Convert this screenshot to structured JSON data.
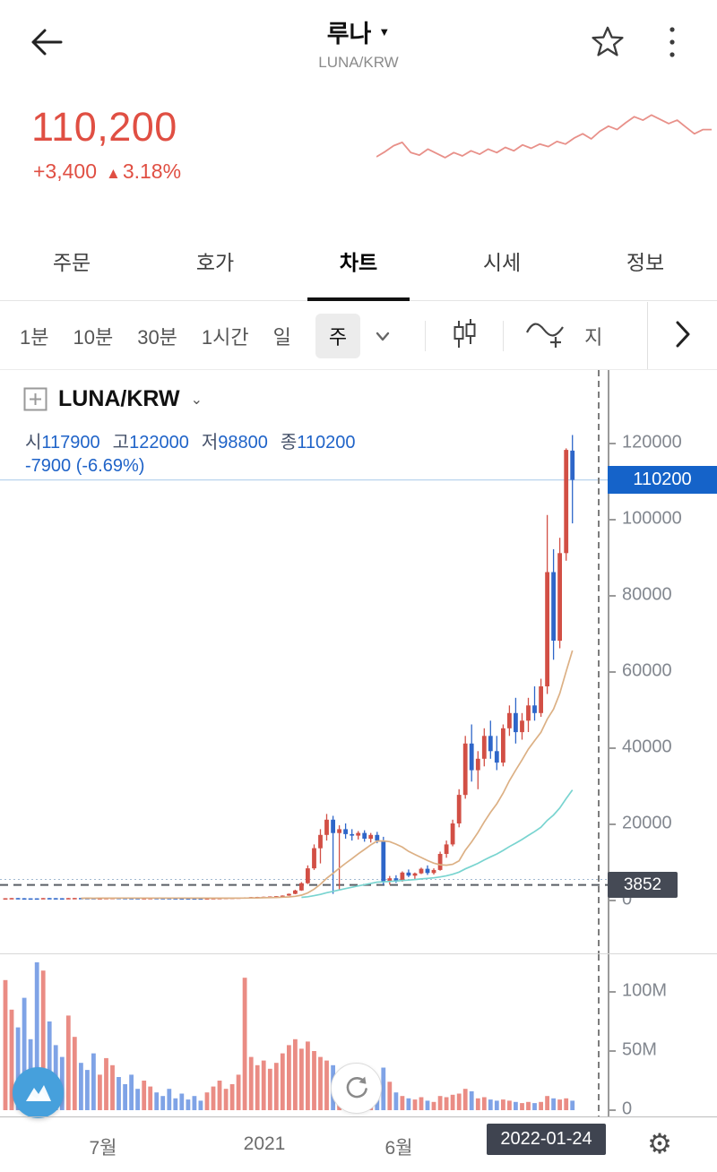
{
  "header": {
    "title": "루나",
    "subtitle": "LUNA/KRW"
  },
  "price": {
    "value": "110,200",
    "change": "+3,400",
    "direction": "▲",
    "change_pct": "3.18%"
  },
  "tabs": [
    "주문",
    "호가",
    "차트",
    "시세",
    "정보"
  ],
  "active_tab": "차트",
  "toolbar": {
    "timeframes": [
      "1분",
      "10분",
      "30분",
      "1시간",
      "일",
      "주"
    ],
    "active_timeframe": "주",
    "indicator_label": "지"
  },
  "chart": {
    "symbol": "LUNA/KRW",
    "labels": {
      "open": "시",
      "high": "고",
      "low": "저",
      "close": "종"
    },
    "ohlc": {
      "open": "117900",
      "high": "122000",
      "low": "98800",
      "close": "110200"
    },
    "change_line": "-7900 (-6.69%)",
    "current_price_label": "110200",
    "low_marker_label": "3852",
    "axis_ticks": [
      120000,
      100000,
      80000,
      60000,
      40000,
      20000,
      0
    ],
    "x_labels": [
      {
        "text": "7월",
        "x": 115
      },
      {
        "text": "2021",
        "x": 295
      },
      {
        "text": "6월",
        "x": 445
      }
    ],
    "date_label": "2022-01-24",
    "volume_ticks": [
      {
        "text": "100M",
        "m": 100
      },
      {
        "text": "50M",
        "m": 50
      },
      {
        "text": "0",
        "m": 0
      }
    ]
  },
  "colors": {
    "up": "#d24f45",
    "down": "#2e66c9",
    "vol_up": "#ea8c84",
    "vol_down": "#7fa3e6",
    "price_red": "#e04f43",
    "ohlc_blue": "#1f63c8",
    "tag_blue": "#1563c9",
    "tag_dark": "#454a55",
    "spark": "#e89089",
    "marker_line": "#b9d3ee",
    "dashed_line": "#5a5f66",
    "dotted_line": "#a3bbd2",
    "crosshair": "#7d7d7d"
  },
  "chart_data": {
    "type": "candlestick",
    "interval": "week",
    "title": "LUNA/KRW weekly candlestick with volume",
    "ylim": [
      0,
      138000
    ],
    "marker_price": 110200,
    "dashed_level": 3852,
    "dotted_level": 5300,
    "ma": [
      {
        "name": "ma-fast",
        "window": 13,
        "color": "#dcb084"
      },
      {
        "name": "ma-slow",
        "window": 48,
        "color": "#79d4d0"
      }
    ],
    "candles": [
      [
        320,
        380,
        260,
        350,
        110
      ],
      [
        350,
        420,
        300,
        400,
        85
      ],
      [
        400,
        430,
        340,
        360,
        70
      ],
      [
        360,
        390,
        310,
        330,
        95
      ],
      [
        330,
        360,
        290,
        310,
        60
      ],
      [
        330,
        350,
        270,
        290,
        125
      ],
      [
        290,
        400,
        280,
        390,
        118
      ],
      [
        390,
        420,
        350,
        370,
        75
      ],
      [
        370,
        400,
        330,
        350,
        55
      ],
      [
        350,
        380,
        320,
        340,
        45
      ],
      [
        340,
        420,
        330,
        410,
        80
      ],
      [
        410,
        450,
        380,
        430,
        62
      ],
      [
        430,
        460,
        390,
        400,
        40
      ],
      [
        400,
        430,
        370,
        390,
        34
      ],
      [
        390,
        410,
        350,
        370,
        48
      ],
      [
        370,
        400,
        340,
        380,
        30
      ],
      [
        380,
        430,
        360,
        420,
        44
      ],
      [
        420,
        460,
        400,
        440,
        38
      ],
      [
        440,
        470,
        410,
        430,
        28
      ],
      [
        430,
        450,
        390,
        410,
        22
      ],
      [
        410,
        440,
        380,
        400,
        30
      ],
      [
        400,
        420,
        360,
        380,
        18
      ],
      [
        380,
        410,
        350,
        390,
        25
      ],
      [
        390,
        430,
        370,
        420,
        20
      ],
      [
        420,
        450,
        390,
        410,
        15
      ],
      [
        410,
        430,
        370,
        390,
        12
      ],
      [
        390,
        410,
        350,
        370,
        18
      ],
      [
        370,
        400,
        340,
        360,
        10
      ],
      [
        360,
        390,
        330,
        350,
        14
      ],
      [
        350,
        380,
        320,
        340,
        9
      ],
      [
        340,
        370,
        310,
        330,
        12
      ],
      [
        330,
        360,
        300,
        320,
        8
      ],
      [
        320,
        360,
        300,
        350,
        15
      ],
      [
        350,
        400,
        330,
        390,
        20
      ],
      [
        390,
        440,
        370,
        430,
        25
      ],
      [
        430,
        480,
        410,
        460,
        18
      ],
      [
        460,
        520,
        440,
        500,
        22
      ],
      [
        500,
        560,
        470,
        540,
        30
      ],
      [
        540,
        620,
        510,
        600,
        112
      ],
      [
        600,
        680,
        560,
        650,
        45
      ],
      [
        650,
        720,
        600,
        700,
        38
      ],
      [
        700,
        780,
        650,
        760,
        42
      ],
      [
        760,
        850,
        700,
        820,
        35
      ],
      [
        820,
        950,
        780,
        920,
        40
      ],
      [
        920,
        1100,
        880,
        1050,
        48
      ],
      [
        1050,
        1600,
        1000,
        1500,
        55
      ],
      [
        1500,
        2600,
        1400,
        2400,
        60
      ],
      [
        2400,
        4600,
        2300,
        4300,
        52
      ],
      [
        4300,
        9000,
        4100,
        8200,
        58
      ],
      [
        8200,
        14500,
        7800,
        13500,
        50
      ],
      [
        13500,
        18500,
        9500,
        17000,
        45
      ],
      [
        17000,
        22500,
        15500,
        21000,
        42
      ],
      [
        21000,
        22000,
        1500,
        17500,
        38
      ],
      [
        17500,
        19500,
        2500,
        18500,
        32
      ],
      [
        18500,
        20000,
        16000,
        17200,
        26
      ],
      [
        17200,
        18500,
        15500,
        16800,
        22
      ],
      [
        16800,
        18000,
        15800,
        17500,
        18
      ],
      [
        17500,
        18200,
        15200,
        16000,
        16
      ],
      [
        16000,
        17500,
        15000,
        17000,
        14
      ],
      [
        17000,
        17800,
        14800,
        15500,
        13
      ],
      [
        15500,
        16500,
        3852,
        4800,
        36
      ],
      [
        4800,
        6200,
        3900,
        5600,
        24
      ],
      [
        5600,
        6400,
        4400,
        4900,
        15
      ],
      [
        4900,
        7400,
        4700,
        7100,
        12
      ],
      [
        7100,
        7900,
        5900,
        6300,
        10
      ],
      [
        6300,
        7100,
        5400,
        6900,
        9
      ],
      [
        6900,
        8400,
        6700,
        8100,
        11
      ],
      [
        8100,
        9000,
        6500,
        7000,
        8
      ],
      [
        7000,
        8200,
        6600,
        7800,
        7
      ],
      [
        7800,
        12600,
        7600,
        12000,
        12
      ],
      [
        12000,
        15500,
        11000,
        14500,
        11
      ],
      [
        14500,
        21000,
        14000,
        20000,
        13
      ],
      [
        20000,
        29000,
        19000,
        27500,
        14
      ],
      [
        27500,
        43000,
        26500,
        41000,
        18
      ],
      [
        41000,
        46000,
        31000,
        34000,
        16
      ],
      [
        34000,
        39000,
        29000,
        37000,
        10
      ],
      [
        37000,
        45000,
        35000,
        43000,
        11
      ],
      [
        43000,
        47000,
        37000,
        39000,
        9
      ],
      [
        39000,
        43000,
        34000,
        36000,
        8
      ],
      [
        36000,
        46000,
        35000,
        45000,
        9
      ],
      [
        45000,
        51000,
        43000,
        49000,
        8
      ],
      [
        49000,
        53000,
        41000,
        44000,
        7
      ],
      [
        44000,
        49000,
        42000,
        47000,
        6
      ],
      [
        47000,
        53000,
        44000,
        51000,
        7
      ],
      [
        51000,
        56000,
        47000,
        49000,
        6
      ],
      [
        49000,
        58000,
        48000,
        56000,
        7
      ],
      [
        56000,
        101000,
        54000,
        86000,
        12
      ],
      [
        86000,
        92000,
        63000,
        68000,
        10
      ],
      [
        68000,
        95000,
        66000,
        91000,
        9
      ],
      [
        91000,
        118500,
        89000,
        118100,
        10
      ],
      [
        117900,
        122000,
        98800,
        110200,
        8
      ]
    ],
    "sparkline": [
      60,
      54,
      47,
      43,
      55,
      58,
      51,
      56,
      61,
      55,
      59,
      53,
      57,
      51,
      55,
      49,
      53,
      46,
      50,
      45,
      48,
      42,
      45,
      38,
      33,
      39,
      30,
      24,
      28,
      20,
      13,
      17,
      11,
      16,
      21,
      17,
      25,
      33,
      28,
      28
    ]
  }
}
